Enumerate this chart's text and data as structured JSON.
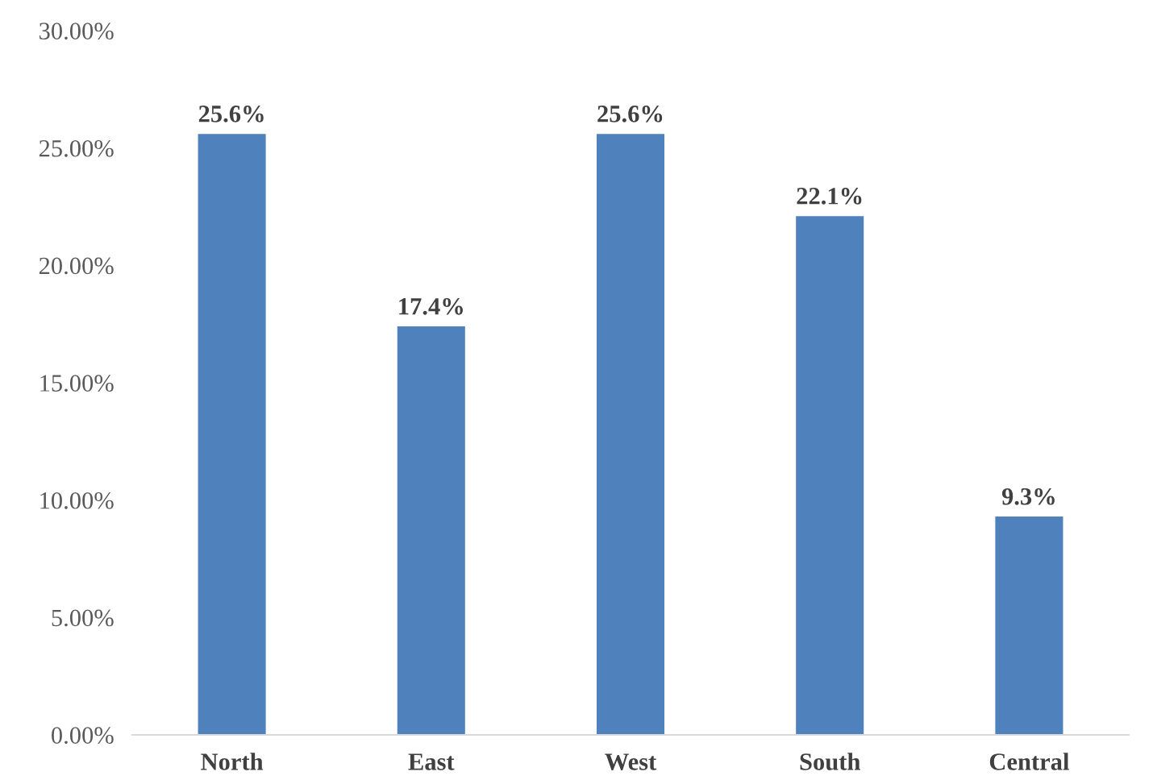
{
  "chart_data": {
    "type": "bar",
    "categories": [
      "North",
      "East",
      "West",
      "South",
      "Central"
    ],
    "values": [
      25.6,
      17.4,
      25.6,
      22.1,
      9.3
    ],
    "value_labels": [
      "25.6%",
      "17.4%",
      "25.6%",
      "22.1%",
      "9.3%"
    ],
    "color": "#4f81bd",
    "ylim": [
      0,
      30
    ],
    "yticks": [
      {
        "value": 0,
        "label": "0.00%"
      },
      {
        "value": 5,
        "label": "5.00%"
      },
      {
        "value": 10,
        "label": "10.00%"
      },
      {
        "value": 15,
        "label": "15.00%"
      },
      {
        "value": 20,
        "label": "20.00%"
      },
      {
        "value": 25,
        "label": "25.00%"
      },
      {
        "value": 30,
        "label": "30.00%"
      }
    ],
    "grid": false,
    "legend": false
  }
}
